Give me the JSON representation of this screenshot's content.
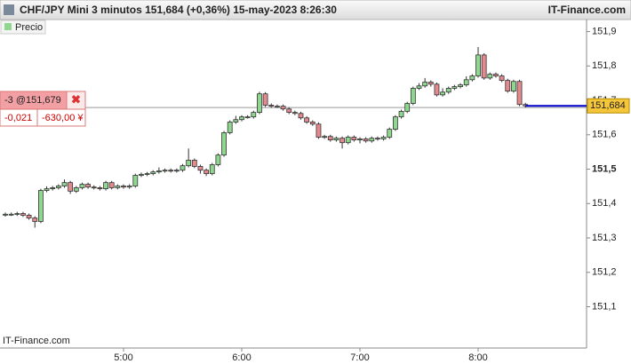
{
  "header": {
    "title": "CHF/JPY Mini 3 minutos 151,684 (+0,36%) 15-may-2023 8:26:30",
    "brand": "IT-Finance.com"
  },
  "watermark": "IT-Finance.com",
  "order": {
    "price": 151.679,
    "label": "-3 @151,679",
    "pnl": "-0,021",
    "pnl_ccy": "-630,00 ¥"
  },
  "chart_data": {
    "type": "candlestick",
    "x": [
      null,
      null,
      null,
      null,
      null,
      null,
      null,
      null,
      null,
      null,
      null,
      null,
      null,
      null,
      null,
      null,
      null,
      null,
      null,
      null,
      "5:00",
      null,
      null,
      null,
      null,
      null,
      null,
      null,
      null,
      null,
      null,
      null,
      null,
      null,
      null,
      null,
      null,
      null,
      null,
      null,
      "6:00",
      null,
      null,
      null,
      null,
      null,
      null,
      null,
      null,
      null,
      null,
      null,
      null,
      null,
      null,
      null,
      null,
      null,
      null,
      null,
      "7:00",
      null,
      null,
      null,
      null,
      null,
      null,
      null,
      null,
      null,
      null,
      null,
      null,
      null,
      null,
      null,
      null,
      null,
      null,
      null,
      "8:00",
      null,
      null,
      null,
      null,
      null,
      null,
      null,
      null
    ],
    "series": [
      {
        "name": "Precio",
        "up_color": "#8fd68f",
        "down_color": "#e48a8e",
        "open": [
          151.367,
          151.369,
          151.369,
          151.371,
          151.366,
          151.358,
          151.348,
          151.438,
          151.443,
          151.446,
          151.451,
          151.461,
          151.436,
          151.446,
          151.456,
          151.448,
          151.446,
          151.443,
          151.461,
          151.446,
          151.451,
          151.448,
          151.451,
          151.482,
          151.485,
          151.487,
          151.492,
          151.495,
          151.497,
          151.495,
          151.497,
          151.51,
          151.526,
          151.508,
          151.497,
          151.487,
          151.513,
          151.541,
          151.606,
          151.637,
          151.644,
          151.652,
          151.652,
          151.665,
          151.719,
          151.686,
          151.683,
          151.683,
          151.675,
          151.665,
          151.662,
          151.649,
          151.637,
          151.631,
          151.593,
          151.595,
          151.585,
          151.59,
          151.577,
          151.593,
          151.585,
          151.588,
          151.582,
          151.59,
          151.588,
          151.593,
          151.616,
          151.652,
          151.668,
          151.691,
          151.735,
          151.742,
          151.753,
          151.747,
          151.716,
          151.724,
          151.735,
          151.74,
          151.745,
          151.76,
          151.771,
          151.832,
          151.765,
          151.776,
          151.771,
          151.758,
          151.727,
          151.755,
          151.688
        ],
        "high": [
          151.374,
          151.374,
          151.376,
          151.376,
          151.371,
          151.363,
          151.443,
          151.45,
          151.451,
          151.456,
          151.47,
          151.466,
          151.451,
          151.461,
          151.461,
          151.453,
          151.451,
          151.466,
          151.466,
          151.456,
          151.456,
          151.456,
          151.487,
          151.49,
          151.492,
          151.497,
          151.505,
          151.502,
          151.502,
          151.502,
          151.515,
          151.56,
          151.531,
          151.513,
          151.502,
          151.518,
          151.546,
          151.611,
          151.642,
          151.655,
          151.657,
          151.657,
          151.67,
          151.725,
          151.724,
          151.691,
          151.688,
          151.688,
          151.68,
          151.67,
          151.667,
          151.654,
          151.642,
          151.636,
          151.6,
          151.6,
          151.595,
          151.595,
          151.598,
          151.598,
          151.593,
          151.593,
          151.595,
          151.595,
          151.598,
          151.621,
          151.657,
          151.673,
          151.696,
          151.74,
          151.75,
          151.765,
          151.758,
          151.752,
          151.735,
          151.74,
          151.745,
          151.75,
          151.77,
          151.776,
          151.855,
          151.837,
          151.781,
          151.781,
          151.776,
          151.763,
          151.76,
          151.76,
          151.693
        ],
        "low": [
          151.362,
          151.364,
          151.364,
          151.361,
          151.353,
          151.33,
          151.343,
          151.433,
          151.438,
          151.441,
          151.446,
          151.428,
          151.431,
          151.441,
          151.443,
          151.441,
          151.438,
          151.438,
          151.441,
          151.441,
          151.443,
          151.443,
          151.446,
          151.477,
          151.48,
          151.482,
          151.487,
          151.49,
          151.49,
          151.49,
          151.492,
          151.505,
          151.503,
          151.487,
          151.48,
          151.482,
          151.508,
          151.536,
          151.601,
          151.632,
          151.639,
          151.647,
          151.647,
          151.66,
          151.681,
          151.678,
          151.678,
          151.67,
          151.66,
          151.657,
          151.644,
          151.632,
          151.626,
          151.588,
          151.588,
          151.58,
          151.58,
          151.56,
          151.572,
          151.58,
          151.575,
          151.577,
          151.577,
          151.583,
          151.583,
          151.588,
          151.611,
          151.647,
          151.663,
          151.686,
          151.73,
          151.737,
          151.74,
          151.711,
          151.711,
          151.719,
          151.73,
          151.735,
          151.74,
          151.755,
          151.766,
          151.76,
          151.76,
          151.766,
          151.753,
          151.722,
          151.722,
          151.683,
          151.679
        ],
        "close": [
          151.369,
          151.369,
          151.371,
          151.366,
          151.358,
          151.348,
          151.438,
          151.443,
          151.446,
          151.451,
          151.461,
          151.436,
          151.446,
          151.456,
          151.448,
          151.446,
          151.443,
          151.461,
          151.446,
          151.451,
          151.448,
          151.451,
          151.482,
          151.485,
          151.487,
          151.492,
          151.495,
          151.497,
          151.495,
          151.497,
          151.51,
          151.526,
          151.508,
          151.497,
          151.487,
          151.513,
          151.541,
          151.606,
          151.637,
          151.644,
          151.652,
          151.652,
          151.665,
          151.719,
          151.686,
          151.683,
          151.683,
          151.675,
          151.665,
          151.662,
          151.649,
          151.637,
          151.631,
          151.593,
          151.595,
          151.585,
          151.59,
          151.577,
          151.593,
          151.585,
          151.588,
          151.582,
          151.59,
          151.588,
          151.593,
          151.616,
          151.652,
          151.668,
          151.691,
          151.735,
          151.742,
          151.753,
          151.747,
          151.716,
          151.724,
          151.735,
          151.74,
          151.745,
          151.76,
          151.771,
          151.832,
          151.765,
          151.776,
          151.771,
          151.758,
          151.727,
          151.755,
          151.688,
          151.684
        ]
      }
    ],
    "ylim": [
      150.98,
      151.935
    ],
    "yticks": [
      {
        "value": 151.1,
        "label": "151,1"
      },
      {
        "value": 151.2,
        "label": "151,2"
      },
      {
        "value": 151.3,
        "label": "151,3"
      },
      {
        "value": 151.4,
        "label": "151,4"
      },
      {
        "value": 151.5,
        "label": "151,5"
      },
      {
        "value": 151.6,
        "label": "151,6"
      },
      {
        "value": 151.7,
        "label": "151,7"
      },
      {
        "value": 151.8,
        "label": "151,8"
      },
      {
        "value": 151.9,
        "label": "151,9"
      }
    ],
    "bold_ytick": 151.5,
    "last_price": {
      "value": 151.684,
      "label": "151,684",
      "color": "#0000cc"
    }
  }
}
